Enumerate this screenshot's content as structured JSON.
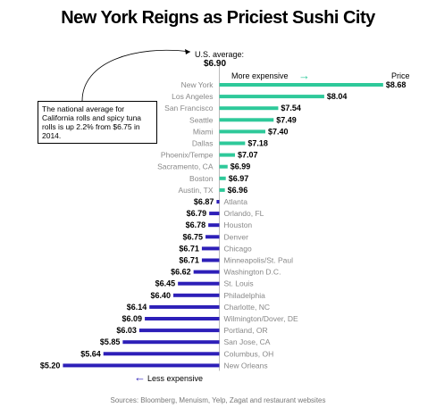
{
  "title": "New York Reigns as Priciest Sushi City",
  "annotations": {
    "us_average_label": "U.S. average:",
    "us_average_value": "$6.90",
    "more_expensive": "More expensive",
    "less_expensive": "Less expensive",
    "price_label": "Price",
    "note": "The national average for California rolls and spicy tuna rolls is up 2.2% from $6.75 in 2014."
  },
  "source": "Sources: Bloomberg, Menuism, Yelp, Zagat and restaurant websites",
  "colors": {
    "above": "#2ec99a",
    "below": "#2d1fb8"
  },
  "chart_data": {
    "type": "bar",
    "orientation": "horizontal",
    "baseline": 6.9,
    "value_format": "$0.00",
    "categories": [
      "New York",
      "Los Angeles",
      "San Francisco",
      "Seattle",
      "Miami",
      "Dallas",
      "Phoenix/Tempe",
      "Sacramento, CA",
      "Boston",
      "Austin, TX",
      "Atlanta",
      "Orlando, FL",
      "Houston",
      "Denver",
      "Chicago",
      "Minneapolis/St. Paul",
      "Washington D.C.",
      "St. Louis",
      "Philadelphia",
      "Charlotte, NC",
      "Wilmington/Dover, DE",
      "Portland, OR",
      "San Jose, CA",
      "Columbus, OH",
      "New Orleans"
    ],
    "values": [
      8.68,
      8.04,
      7.54,
      7.49,
      7.4,
      7.18,
      7.07,
      6.99,
      6.97,
      6.96,
      6.87,
      6.79,
      6.78,
      6.75,
      6.71,
      6.71,
      6.62,
      6.45,
      6.4,
      6.14,
      6.09,
      6.03,
      5.85,
      5.64,
      5.2
    ],
    "value_labels": [
      "$8.68",
      "$8.04",
      "$7.54",
      "$7.49",
      "$7.40",
      "$7.18",
      "$7.07",
      "$6.99",
      "$6.97",
      "$6.96",
      "$6.87",
      "$6.79",
      "$6.78",
      "$6.75",
      "$6.71",
      "$6.71",
      "$6.62",
      "$6.45",
      "$6.40",
      "$6.14",
      "$6.09",
      "$6.03",
      "$5.85",
      "$5.64",
      "$5.20"
    ]
  }
}
